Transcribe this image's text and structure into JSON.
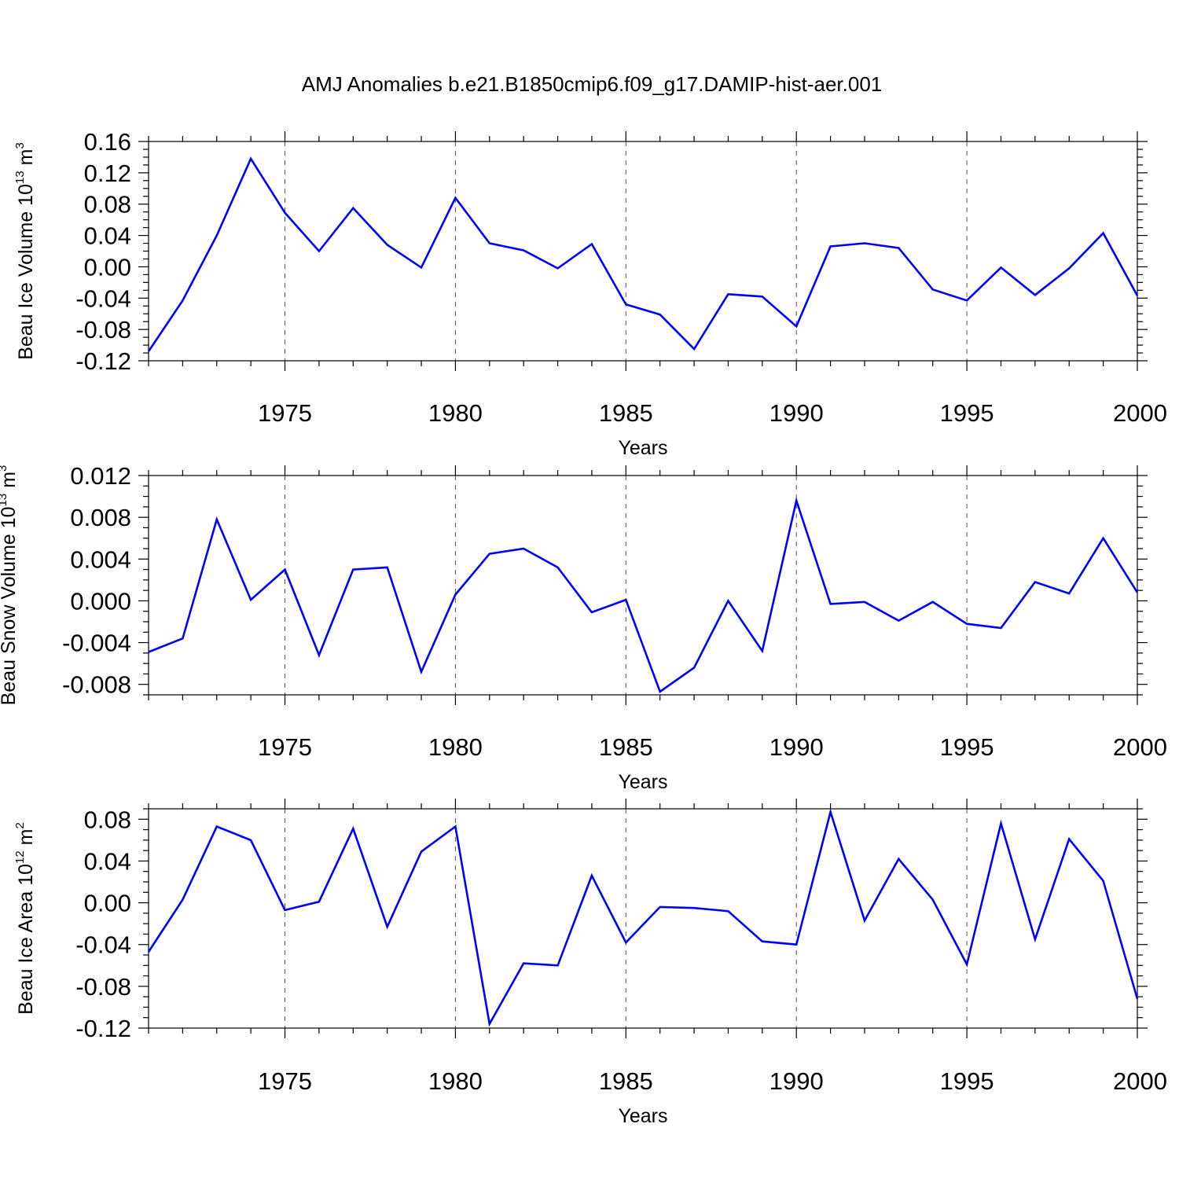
{
  "title": "AMJ Anomalies b.e21.B1850cmip6.f09_g17.DAMIP-hist-aer.001",
  "chart_data": [
    {
      "type": "line",
      "title": "AMJ Anomalies b.e21.B1850cmip6.f09_g17.DAMIP-hist-aer.001",
      "xlabel": "Years",
      "ylabel": "Beau Ice Volume 10",
      "ylabel_exp": "13",
      "ylabel_unit": " m",
      "ylabel_unit_exp": "3",
      "xlim": [
        1971,
        2000
      ],
      "ylim": [
        -0.12,
        0.16
      ],
      "yticks": [
        -0.12,
        -0.08,
        -0.04,
        0.0,
        0.04,
        0.08,
        0.12,
        0.16
      ],
      "ytick_labels": [
        "-0.12",
        "-0.08",
        "-0.04",
        "0.00",
        "0.04",
        "0.08",
        "0.12",
        "0.16"
      ],
      "yminor_step": 0.01,
      "xticks": [
        1975,
        1980,
        1985,
        1990,
        1995,
        2000
      ],
      "xtick_labels": [
        "1975",
        "1980",
        "1985",
        "1990",
        "1995",
        "2000"
      ],
      "grid_x": [
        1975,
        1980,
        1985,
        1990,
        1995
      ],
      "series": [
        {
          "name": "Beau Ice Volume",
          "color": "#0000ff",
          "x": [
            1971,
            1972,
            1973,
            1974,
            1975,
            1976,
            1977,
            1978,
            1979,
            1980,
            1981,
            1982,
            1983,
            1984,
            1985,
            1986,
            1987,
            1988,
            1989,
            1990,
            1991,
            1992,
            1993,
            1994,
            1995,
            1996,
            1997,
            1998,
            1999,
            2000
          ],
          "values": [
            -0.108,
            -0.043,
            0.04,
            0.138,
            0.069,
            0.02,
            0.075,
            0.028,
            -0.001,
            0.088,
            0.03,
            0.021,
            -0.002,
            0.029,
            -0.048,
            -0.061,
            -0.105,
            -0.035,
            -0.038,
            -0.076,
            0.026,
            0.03,
            0.024,
            -0.029,
            -0.043,
            -0.001,
            -0.036,
            -0.002,
            0.043,
            -0.037
          ]
        }
      ]
    },
    {
      "type": "line",
      "title": "",
      "xlabel": "Years",
      "ylabel": "Beau Snow Volume 10",
      "ylabel_exp": "13",
      "ylabel_unit": " m",
      "ylabel_unit_exp": "3",
      "xlim": [
        1971,
        2000
      ],
      "ylim": [
        -0.009,
        0.012
      ],
      "yticks": [
        -0.008,
        -0.004,
        0.0,
        0.004,
        0.008,
        0.012
      ],
      "ytick_labels": [
        "-0.008",
        "-0.004",
        "0.000",
        "0.004",
        "0.008",
        "0.012"
      ],
      "yminor_step": 0.001,
      "xticks": [
        1975,
        1980,
        1985,
        1990,
        1995,
        2000
      ],
      "xtick_labels": [
        "1975",
        "1980",
        "1985",
        "1990",
        "1995",
        "2000"
      ],
      "grid_x": [
        1975,
        1980,
        1985,
        1990,
        1995
      ],
      "series": [
        {
          "name": "Beau Snow Volume",
          "color": "#0000ff",
          "x": [
            1971,
            1972,
            1973,
            1974,
            1975,
            1976,
            1977,
            1978,
            1979,
            1980,
            1981,
            1982,
            1983,
            1984,
            1985,
            1986,
            1987,
            1988,
            1989,
            1990,
            1991,
            1992,
            1993,
            1994,
            1995,
            1996,
            1997,
            1998,
            1999,
            2000
          ],
          "values": [
            -0.0049,
            -0.0036,
            0.0078,
            0.0001,
            0.003,
            -0.0052,
            0.003,
            0.0032,
            -0.0068,
            0.0006,
            0.0045,
            0.005,
            0.0032,
            -0.0011,
            0.0001,
            -0.0087,
            -0.0064,
            0.0,
            -0.0048,
            0.0096,
            -0.0003,
            -0.0001,
            -0.0019,
            -0.0001,
            -0.0022,
            -0.0026,
            0.0018,
            0.0007,
            0.006,
            0.0008
          ]
        }
      ]
    },
    {
      "type": "line",
      "title": "",
      "xlabel": "Years",
      "ylabel": "Beau Ice Area 10",
      "ylabel_exp": "12",
      "ylabel_unit": " m",
      "ylabel_unit_exp": "2",
      "xlim": [
        1971,
        2000
      ],
      "ylim": [
        -0.12,
        0.09
      ],
      "yticks": [
        -0.12,
        -0.08,
        -0.04,
        0.0,
        0.04,
        0.08
      ],
      "ytick_labels": [
        "-0.12",
        "-0.08",
        "-0.04",
        "0.00",
        "0.04",
        "0.08"
      ],
      "yminor_step": 0.01,
      "xticks": [
        1975,
        1980,
        1985,
        1990,
        1995,
        2000
      ],
      "xtick_labels": [
        "1975",
        "1980",
        "1985",
        "1990",
        "1995",
        "2000"
      ],
      "grid_x": [
        1975,
        1980,
        1985,
        1990,
        1995
      ],
      "series": [
        {
          "name": "Beau Ice Area",
          "color": "#0000ff",
          "x": [
            1971,
            1972,
            1973,
            1974,
            1975,
            1976,
            1977,
            1978,
            1979,
            1980,
            1981,
            1982,
            1983,
            1984,
            1985,
            1986,
            1987,
            1988,
            1989,
            1990,
            1991,
            1992,
            1993,
            1994,
            1995,
            1996,
            1997,
            1998,
            1999,
            2000
          ],
          "values": [
            -0.047,
            0.003,
            0.073,
            0.06,
            -0.007,
            0.001,
            0.071,
            -0.023,
            0.049,
            0.073,
            -0.116,
            -0.058,
            -0.06,
            0.026,
            -0.038,
            -0.004,
            -0.005,
            -0.008,
            -0.037,
            -0.04,
            0.087,
            -0.017,
            0.042,
            0.003,
            -0.059,
            0.076,
            -0.035,
            0.061,
            0.021,
            -0.092
          ]
        }
      ]
    }
  ]
}
